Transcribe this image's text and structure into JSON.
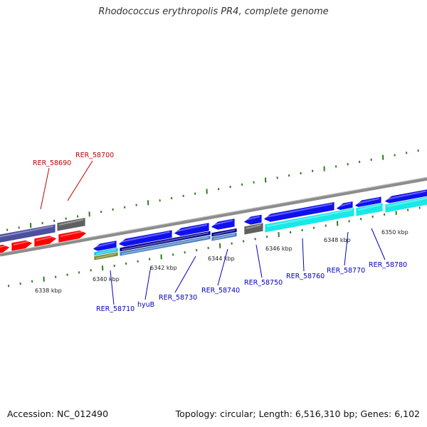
{
  "title": "Rhodococcus erythropolis PR4, complete genome",
  "footer": {
    "accession": "Accession: NC_012490",
    "summary": "Topology: circular; Length: 6,516,310 bp; Genes: 6,102"
  },
  "colors": {
    "backbone": "#888888",
    "tick_minor": "#2e7d1e",
    "tick_major": "#2e7d1e",
    "label_blue": "#0000c0",
    "label_red": "#c00000"
  },
  "scale": {
    "kbp_labels": [
      "6338 kbp",
      "6340 kbp",
      "6342 kbp",
      "6344 kbp",
      "6346 kbp",
      "6348 kbp",
      "6350 kbp"
    ]
  },
  "genes": [
    {
      "id": "g1",
      "color": "#ff0000",
      "strand": "fwd"
    },
    {
      "id": "g2",
      "color": "#ff0000",
      "strand": "fwd"
    },
    {
      "id": "g3",
      "color": "#ff0000",
      "strand": "fwd"
    },
    {
      "id": "g4",
      "color": "#ff0000",
      "strand": "fwd"
    },
    {
      "id": "g5",
      "color": "#4b4f9e",
      "strand": "rev"
    },
    {
      "id": "g6",
      "color": "#606060",
      "strand": "rev"
    },
    {
      "id": "g7",
      "color": "#1010ee",
      "strand": "rev"
    },
    {
      "id": "g8",
      "color": "#1010ee",
      "strand": "rev"
    },
    {
      "id": "g9",
      "color": "#1010ee",
      "strand": "rev"
    },
    {
      "id": "g10",
      "color": "#1010ee",
      "strand": "rev"
    },
    {
      "id": "g11",
      "color": "#1010ee",
      "strand": "rev"
    },
    {
      "id": "g12",
      "color": "#1010ee",
      "strand": "rev"
    },
    {
      "id": "g13",
      "color": "#1010ee",
      "strand": "rev"
    },
    {
      "id": "g14",
      "color": "#1010ee",
      "strand": "rev"
    },
    {
      "id": "g15",
      "color": "#1010ee",
      "strand": "rev"
    },
    {
      "id": "g16",
      "color": "#606060",
      "strand": "rev"
    },
    {
      "id": "g17",
      "color": "#18e8e8",
      "strand": "rev"
    },
    {
      "id": "g18",
      "color": "#18e8e8",
      "strand": "rev"
    },
    {
      "id": "g19",
      "color": "#18e8e8",
      "strand": "rev"
    },
    {
      "id": "g20",
      "color": "#000088",
      "strand": "rev"
    },
    {
      "id": "g21",
      "color": "#000088",
      "strand": "rev"
    },
    {
      "id": "g22",
      "color": "#4a7fbf",
      "strand": "rev"
    },
    {
      "id": "g23",
      "color": "#4a7fbf",
      "strand": "rev"
    },
    {
      "id": "g24",
      "color": "#18c8d8",
      "strand": "rev"
    },
    {
      "id": "g25",
      "color": "#7a8a30",
      "strand": "rev"
    }
  ],
  "labels": [
    {
      "text": "RER_58690",
      "color": "#c00000"
    },
    {
      "text": "RER_58700",
      "color": "#c00000"
    },
    {
      "text": "RER_58710",
      "color": "#0000c0"
    },
    {
      "text": "hyuB",
      "color": "#0000c0"
    },
    {
      "text": "RER_58730",
      "color": "#0000c0"
    },
    {
      "text": "RER_58740",
      "color": "#0000c0"
    },
    {
      "text": "RER_58750",
      "color": "#0000c0"
    },
    {
      "text": "RER_58760",
      "color": "#0000c0"
    },
    {
      "text": "RER_58770",
      "color": "#0000c0"
    },
    {
      "text": "RER_58780",
      "color": "#0000c0"
    }
  ]
}
